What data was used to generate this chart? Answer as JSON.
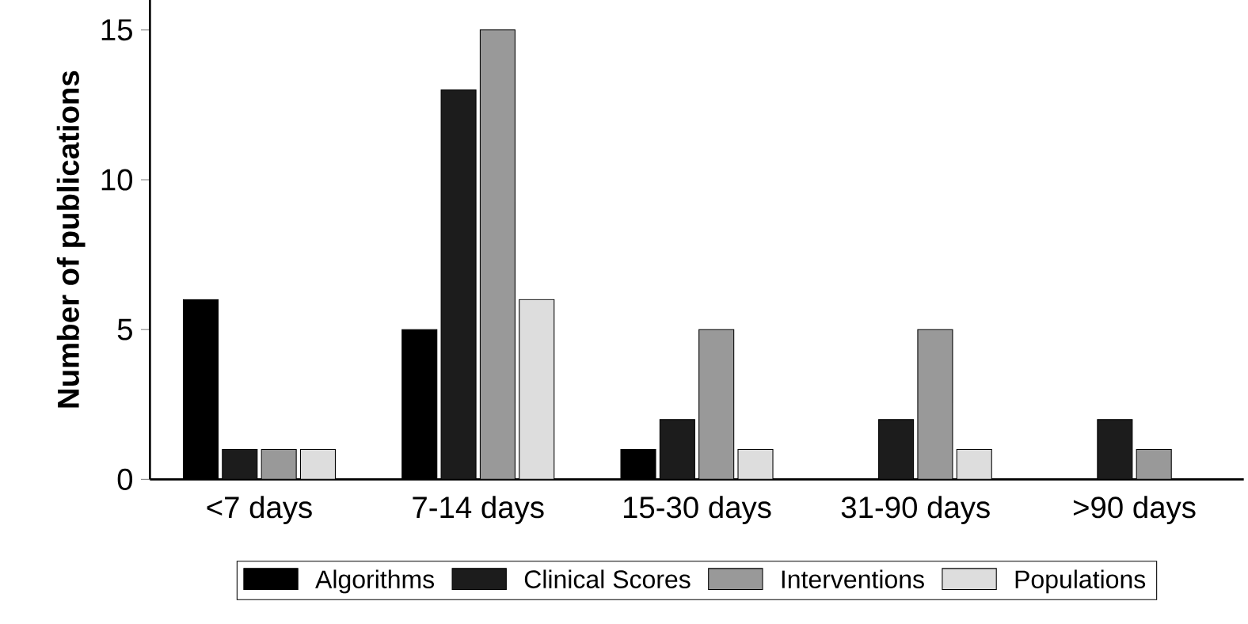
{
  "chart_data": {
    "type": "bar",
    "ylabel": "Number of publications",
    "categories": [
      "<7 days",
      "7-14 days",
      "15-30 days",
      "31-90 days",
      ">90 days"
    ],
    "series": [
      {
        "name": "Algorithms",
        "color": "#000000",
        "values": [
          6,
          5,
          1,
          null,
          null
        ]
      },
      {
        "name": "Clinical Scores",
        "color": "#1c1c1c",
        "values": [
          1,
          13,
          2,
          2,
          2
        ]
      },
      {
        "name": "Interventions",
        "color": "#999999",
        "values": [
          1,
          15,
          5,
          5,
          1
        ]
      },
      {
        "name": "Populations",
        "color": "#dddddd",
        "values": [
          1,
          6,
          1,
          1,
          null
        ]
      }
    ],
    "ylim": [
      0,
      16
    ],
    "yticks": [
      0,
      5,
      10,
      15
    ],
    "grid": false,
    "legend": "bottom"
  }
}
